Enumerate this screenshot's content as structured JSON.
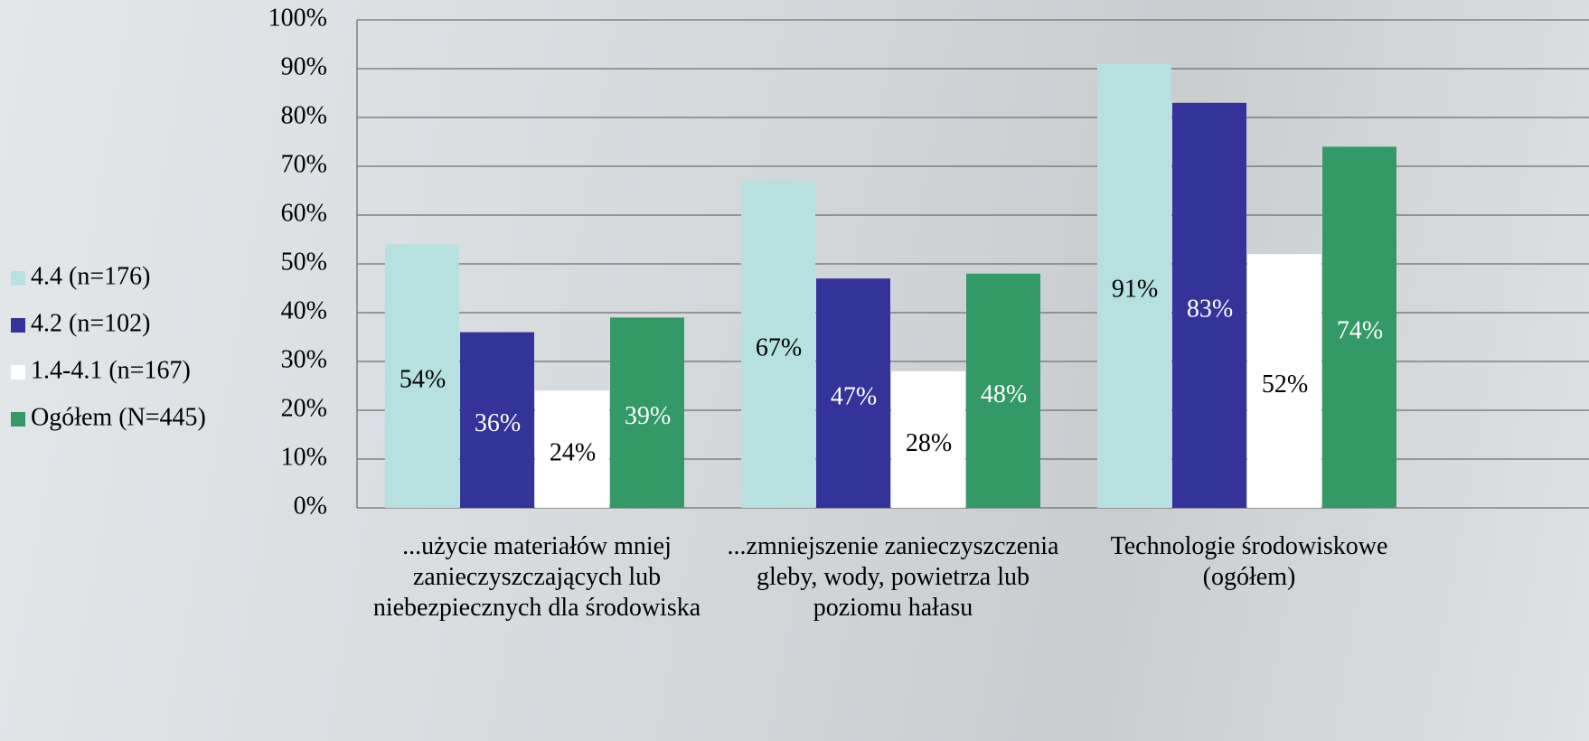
{
  "chart_data": {
    "type": "bar",
    "categories": [
      "...użycie materiałów mniej zanieczyszczających lub niebezpiecznych dla środowiska",
      "...zmniejszenie zanieczyszczenia gleby, wody, powietrza lub poziomu hałasu",
      "Technologie środowiskowe (ogółem)"
    ],
    "series": [
      {
        "name": "4.4 (n=176)",
        "color": "#b7e0e1",
        "label_color": "#000000",
        "values": [
          54,
          67,
          91
        ],
        "value_labels": [
          "54%",
          "67%",
          "91%"
        ]
      },
      {
        "name": "4.2 (n=102)",
        "color": "#333399",
        "label_color": "#ffffff",
        "values": [
          36,
          47,
          83
        ],
        "value_labels": [
          "36%",
          "47%",
          "83%"
        ]
      },
      {
        "name": "1.4-4.1 (n=167)",
        "color": "#ffffff",
        "label_color": "#000000",
        "values": [
          24,
          28,
          52
        ],
        "value_labels": [
          "24%",
          "28%",
          "52%"
        ]
      },
      {
        "name": "Ogółem (N=445)",
        "color": "#339966",
        "label_color": "#ffffff",
        "values": [
          39,
          48,
          74
        ],
        "value_labels": [
          "39%",
          "48%",
          "74%"
        ]
      }
    ],
    "ylim": [
      0,
      100
    ],
    "yticks": [
      {
        "value": 0,
        "label": "0%"
      },
      {
        "value": 10,
        "label": "10%"
      },
      {
        "value": 20,
        "label": "20%"
      },
      {
        "value": 30,
        "label": "30%"
      },
      {
        "value": 40,
        "label": "40%"
      },
      {
        "value": 50,
        "label": "50%"
      },
      {
        "value": 60,
        "label": "60%"
      },
      {
        "value": 70,
        "label": "70%"
      },
      {
        "value": 80,
        "label": "80%"
      },
      {
        "value": 90,
        "label": "90%"
      },
      {
        "value": 100,
        "label": "100%"
      }
    ],
    "grid": true,
    "legend": "left"
  }
}
